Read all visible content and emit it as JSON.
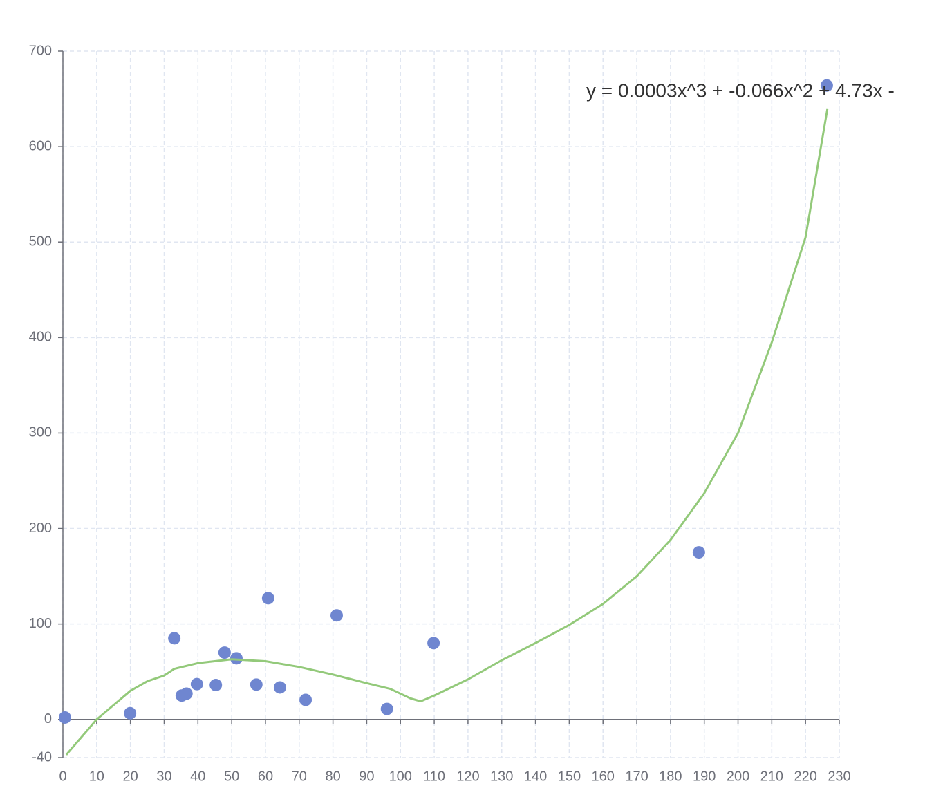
{
  "chart_data": {
    "type": "scatter",
    "annotation": "y = 0.0003x^3 + -0.066x^2 + 4.73x -",
    "xlim": [
      0,
      230
    ],
    "xticks": [
      0,
      10,
      20,
      30,
      40,
      50,
      60,
      70,
      80,
      90,
      100,
      110,
      120,
      130,
      140,
      150,
      160,
      170,
      180,
      190,
      200,
      210,
      220,
      230
    ],
    "ylim": [
      -40,
      700
    ],
    "yticks": [
      -40,
      0,
      100,
      200,
      300,
      400,
      500,
      600,
      700
    ],
    "grid": true,
    "series": [
      {
        "type": "scatter",
        "color": "#6f86d0",
        "x": [
          0.6,
          19.9,
          33,
          35.2,
          36.6,
          39.7,
          45.3,
          47.9,
          51.4,
          57.3,
          60.8,
          64.3,
          71.9,
          81.1,
          96,
          109.8,
          188.4,
          226.3
        ],
        "values": [
          2,
          6.5,
          85,
          25,
          27,
          37,
          36,
          70,
          64,
          36.5,
          127,
          33.5,
          20.5,
          109,
          11,
          80,
          175,
          664
        ]
      },
      {
        "type": "line",
        "color": "#93c97a",
        "x": [
          1,
          10,
          20,
          25,
          30,
          33,
          40,
          50,
          60,
          70,
          80,
          90,
          97,
          103,
          106,
          110,
          120,
          130,
          140,
          150,
          160,
          170,
          180,
          190,
          200,
          210,
          220,
          226.5
        ],
        "values": [
          -37,
          0,
          30,
          40,
          46,
          53,
          59,
          63,
          61,
          55,
          47,
          38,
          32,
          22,
          19,
          25,
          42,
          62,
          80,
          99,
          121,
          150,
          188,
          237,
          300,
          395,
          505,
          640
        ]
      }
    ]
  }
}
